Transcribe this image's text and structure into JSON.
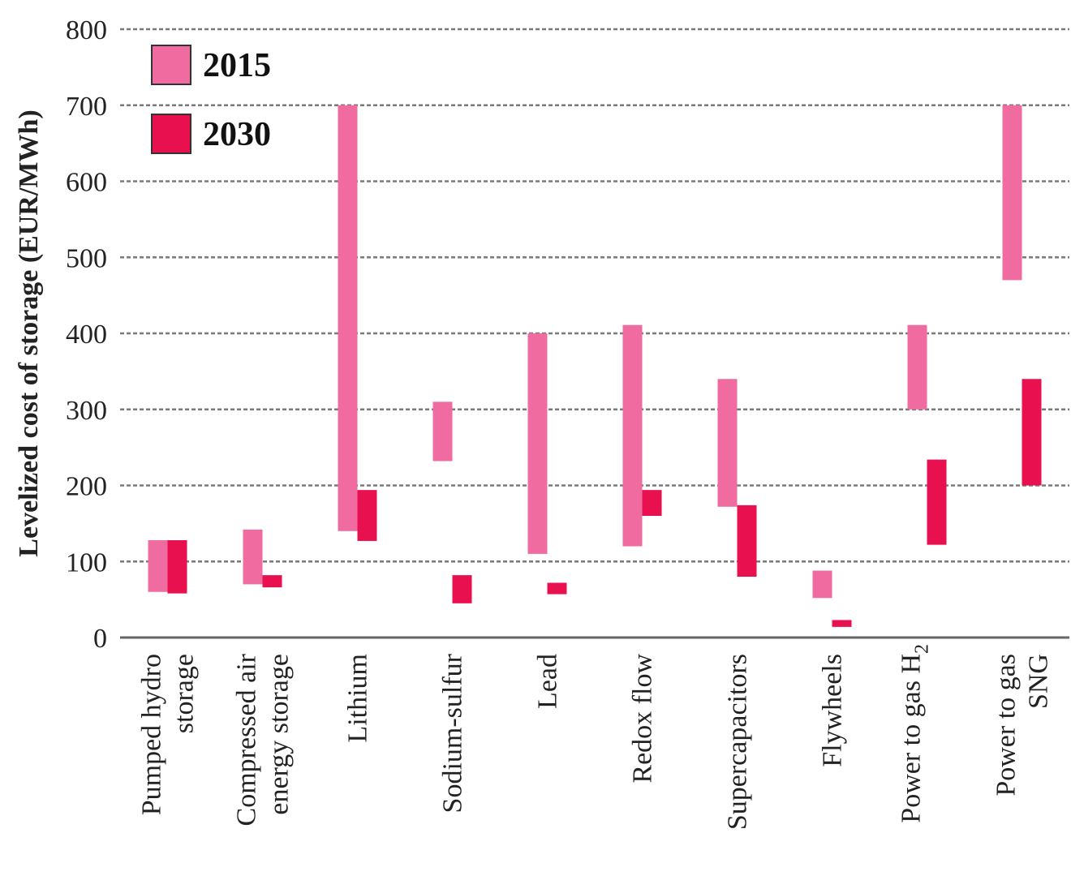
{
  "chart_data": {
    "type": "bar",
    "bar_style": "floating-range",
    "ylabel": "Levelized cost of storage (EUR/MWh)",
    "xlabel": "",
    "ylim": [
      0,
      800
    ],
    "yticks": [
      0,
      100,
      200,
      300,
      400,
      500,
      600,
      700,
      800
    ],
    "grid": true,
    "legend_position": "top-left",
    "categories": [
      {
        "lines": [
          "Pumped hydro",
          "storage"
        ]
      },
      {
        "lines": [
          "Compressed air",
          "energy storage"
        ]
      },
      {
        "lines": [
          "Lithium"
        ]
      },
      {
        "lines": [
          "Sodium-sulfur"
        ]
      },
      {
        "lines": [
          "Lead"
        ]
      },
      {
        "lines": [
          "Redox flow"
        ]
      },
      {
        "lines": [
          "Supercapacitors"
        ]
      },
      {
        "lines": [
          "Flywheels"
        ]
      },
      {
        "lines": [
          "Power to gas H",
          "2"
        ],
        "subscript_last": true
      },
      {
        "lines": [
          "Power to gas",
          "SNG"
        ]
      }
    ],
    "series": [
      {
        "name": "2015",
        "color": "#f06ba0",
        "ranges": [
          [
            60,
            128
          ],
          [
            70,
            142
          ],
          [
            140,
            700
          ],
          [
            232,
            310
          ],
          [
            110,
            400
          ],
          [
            120,
            411
          ],
          [
            172,
            340
          ],
          [
            52,
            88
          ],
          [
            300,
            411
          ],
          [
            470,
            700
          ]
        ]
      },
      {
        "name": "2030",
        "color": "#e8104e",
        "ranges": [
          [
            58,
            128
          ],
          [
            66,
            82
          ],
          [
            127,
            194
          ],
          [
            45,
            82
          ],
          [
            57,
            72
          ],
          [
            160,
            194
          ],
          [
            80,
            174
          ],
          [
            14,
            23
          ],
          [
            122,
            234
          ],
          [
            200,
            340
          ]
        ]
      }
    ]
  }
}
